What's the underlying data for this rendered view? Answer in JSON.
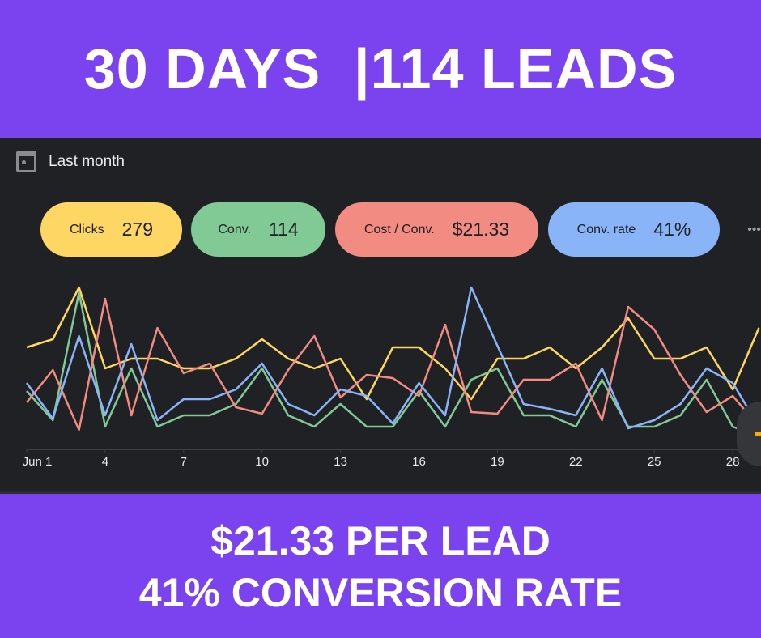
{
  "headline": "30 DAYS  |114 LEADS",
  "date_range": {
    "icon": "calendar-icon",
    "label": "Last month"
  },
  "metrics": [
    {
      "label": "Clicks",
      "value": "279",
      "color": "#fdd663"
    },
    {
      "label": "Conv.",
      "value": "114",
      "color": "#81c995"
    },
    {
      "label": "Cost / Conv.",
      "value": "$21.33",
      "color": "#f28b82"
    },
    {
      "label": "Conv. rate",
      "value": "41%",
      "color": "#8ab4f8"
    }
  ],
  "more_label": "•••",
  "chart_data": {
    "type": "line",
    "x": [
      1,
      2,
      3,
      4,
      5,
      6,
      7,
      8,
      9,
      10,
      11,
      12,
      13,
      14,
      15,
      16,
      17,
      18,
      19,
      20,
      21,
      22,
      23,
      24,
      25,
      26,
      27,
      28,
      29
    ],
    "tick_labels": [
      "Jun 1",
      "4",
      "7",
      "10",
      "13",
      "16",
      "19",
      "22",
      "25",
      "28"
    ],
    "tick_days": [
      1,
      4,
      7,
      10,
      13,
      16,
      19,
      22,
      25,
      28
    ],
    "ylim": [
      0,
      100
    ],
    "series": [
      {
        "name": "Clicks",
        "color": "#fdd663",
        "values": [
          63,
          68,
          100,
          50,
          56,
          56,
          50,
          50,
          56,
          68,
          56,
          50,
          56,
          31,
          63,
          63,
          50,
          31,
          56,
          56,
          63,
          50,
          63,
          81,
          56,
          56,
          63,
          37,
          75
        ]
      },
      {
        "name": "Conv.",
        "color": "#81c995",
        "values": [
          36,
          18,
          97,
          14,
          50,
          14,
          21,
          21,
          28,
          50,
          21,
          14,
          28,
          14,
          14,
          36,
          14,
          43,
          50,
          21,
          21,
          14,
          43,
          14,
          14,
          21,
          43,
          14,
          8
        ]
      },
      {
        "name": "Cost / Conv.",
        "color": "#f28b82",
        "values": [
          29,
          49,
          12,
          93,
          21,
          75,
          47,
          53,
          26,
          22,
          49,
          70,
          32,
          46,
          44,
          33,
          77,
          23,
          22,
          43,
          43,
          53,
          18,
          88,
          74,
          46,
          23,
          33,
          14
        ]
      },
      {
        "name": "Conv. rate",
        "color": "#8ab4f8",
        "values": [
          41,
          19,
          70,
          21,
          65,
          18,
          31,
          31,
          37,
          53,
          28,
          21,
          37,
          33,
          16,
          41,
          21,
          100,
          64,
          28,
          25,
          21,
          50,
          13,
          18,
          28,
          50,
          41,
          14
        ]
      }
    ]
  },
  "footer": {
    "line1": "$21.33 PER LEAD",
    "line2": "41% CONVERSION RATE"
  }
}
